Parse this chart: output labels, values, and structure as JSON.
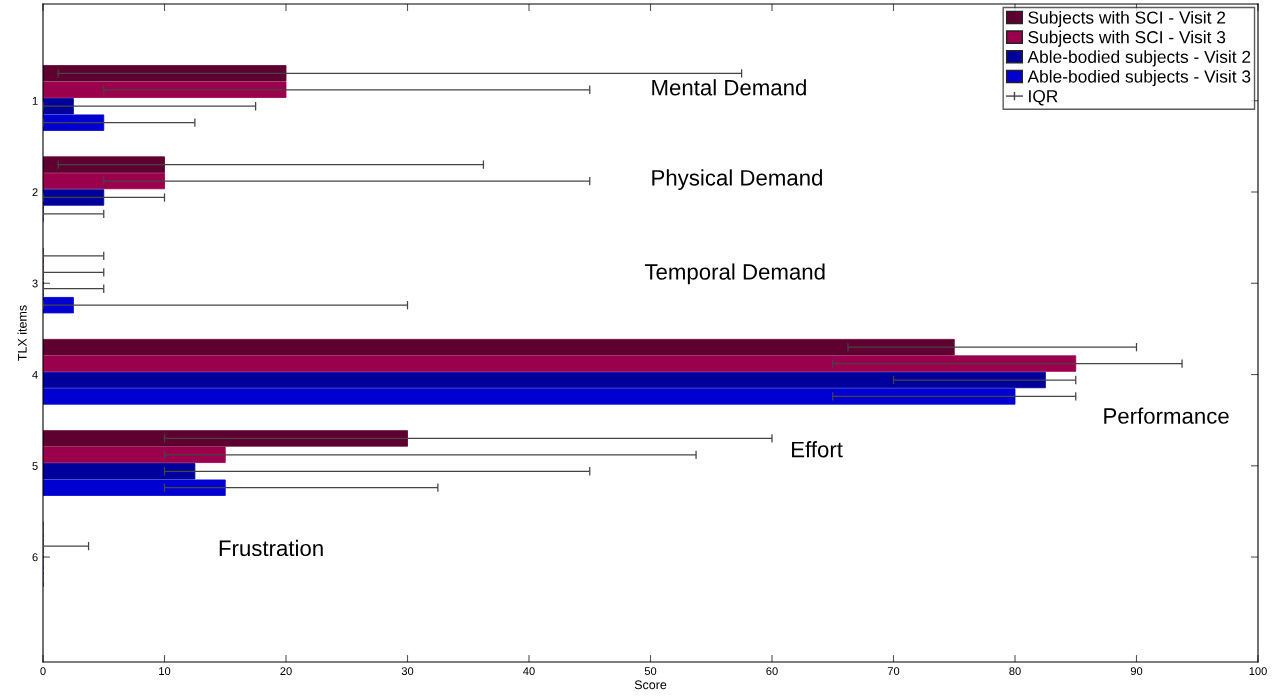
{
  "chart_data": {
    "type": "bar",
    "orientation": "horizontal",
    "xlabel": "Score",
    "ylabel": "TLX items",
    "categories": [
      "1",
      "2",
      "3",
      "4",
      "5",
      "6"
    ],
    "series": [
      {
        "name": "Subjects with SCI - Visit 2",
        "color": "#5e0030",
        "values": [
          20,
          10,
          0,
          75,
          30,
          0
        ],
        "errors": [
          [
            1.25,
            57.5
          ],
          [
            1.25,
            36.25
          ],
          [
            0,
            5
          ],
          [
            66.25,
            90
          ],
          [
            10,
            60
          ],
          [
            0,
            0
          ]
        ]
      },
      {
        "name": "Subjects with SCI - Visit 3",
        "color": "#9b004d",
        "values": [
          20,
          10,
          0,
          85,
          15,
          0
        ],
        "errors": [
          [
            5,
            45
          ],
          [
            5,
            45
          ],
          [
            0,
            5
          ],
          [
            65,
            93.75
          ],
          [
            10,
            53.75
          ],
          [
            0,
            3.75
          ]
        ]
      },
      {
        "name": "Able-bodied subjects - Visit 2",
        "color": "#00009a",
        "values": [
          2.5,
          5,
          0,
          82.5,
          12.5,
          0
        ],
        "errors": [
          [
            0,
            17.5
          ],
          [
            0,
            10
          ],
          [
            0,
            5
          ],
          [
            70,
            85
          ],
          [
            10,
            45
          ],
          [
            0,
            0
          ]
        ]
      },
      {
        "name": "Able-bodied subjects - Visit 3",
        "color": "#0000d0",
        "values": [
          5,
          0,
          2.5,
          80,
          15,
          0
        ],
        "errors": [
          [
            0,
            12.5
          ],
          [
            0,
            5
          ],
          [
            0,
            30
          ],
          [
            65,
            85
          ],
          [
            10,
            32.5
          ],
          [
            0,
            0
          ]
        ]
      }
    ],
    "annotations": [
      "Mental Demand",
      "Physical Demand",
      "Temporal Demand",
      "Performance",
      "Effort",
      "Frustration",
      "IQR"
    ],
    "xlim": [
      0,
      100
    ],
    "xticks": [
      0,
      10,
      20,
      30,
      40,
      50,
      60,
      70,
      80,
      90,
      100
    ],
    "grid": false,
    "legend": "top right"
  }
}
